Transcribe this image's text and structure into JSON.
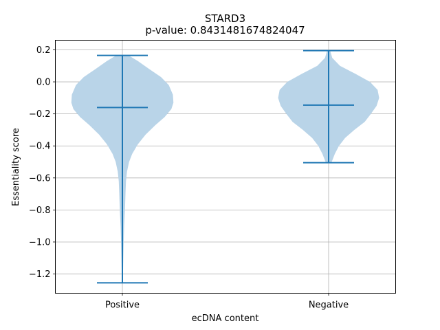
{
  "chart_data": {
    "type": "violin",
    "title": "STARD3",
    "subtitle": "p-value: 0.8431481674824047",
    "xlabel": "ecDNA content",
    "ylabel": "Essentiality score",
    "ylim": [
      -1.32,
      0.26
    ],
    "yticks": [
      0.2,
      0.0,
      -0.2,
      -0.4,
      -0.6,
      -0.8,
      -1.0,
      -1.2
    ],
    "ytick_labels": [
      "0.2",
      "0.0",
      "−0.2",
      "−0.4",
      "−0.6",
      "−0.8",
      "−1.0",
      "−1.2"
    ],
    "grid": true,
    "colors": {
      "body": "#b9d4e8",
      "lines": "#1f77b4"
    },
    "categories": [
      "Positive",
      "Negative"
    ],
    "violins": [
      {
        "category": "Positive",
        "max": 0.165,
        "min": -1.255,
        "median": -0.16,
        "density": [
          [
            0.165,
            0.12
          ],
          [
            0.13,
            0.3
          ],
          [
            0.08,
            0.52
          ],
          [
            0.03,
            0.75
          ],
          [
            -0.02,
            0.9
          ],
          [
            -0.08,
            0.98
          ],
          [
            -0.13,
            0.99
          ],
          [
            -0.17,
            0.95
          ],
          [
            -0.22,
            0.82
          ],
          [
            -0.27,
            0.64
          ],
          [
            -0.33,
            0.45
          ],
          [
            -0.39,
            0.3
          ],
          [
            -0.45,
            0.19
          ],
          [
            -0.5,
            0.13
          ],
          [
            -0.56,
            0.09
          ],
          [
            -0.62,
            0.07
          ],
          [
            -0.7,
            0.06
          ],
          [
            -0.8,
            0.05
          ],
          [
            -0.9,
            0.035
          ],
          [
            -1.0,
            0.025
          ],
          [
            -1.1,
            0.018
          ],
          [
            -1.2,
            0.012
          ],
          [
            -1.255,
            0.005
          ]
        ]
      },
      {
        "category": "Negative",
        "max": 0.195,
        "min": -0.505,
        "median": -0.145,
        "density": [
          [
            0.195,
            0.03
          ],
          [
            0.15,
            0.07
          ],
          [
            0.1,
            0.22
          ],
          [
            0.05,
            0.52
          ],
          [
            0.0,
            0.8
          ],
          [
            -0.05,
            0.95
          ],
          [
            -0.1,
            0.98
          ],
          [
            -0.15,
            0.93
          ],
          [
            -0.2,
            0.82
          ],
          [
            -0.25,
            0.7
          ],
          [
            -0.3,
            0.5
          ],
          [
            -0.35,
            0.32
          ],
          [
            -0.4,
            0.2
          ],
          [
            -0.45,
            0.12
          ],
          [
            -0.5,
            0.06
          ],
          [
            -0.505,
            0.04
          ]
        ]
      }
    ]
  }
}
